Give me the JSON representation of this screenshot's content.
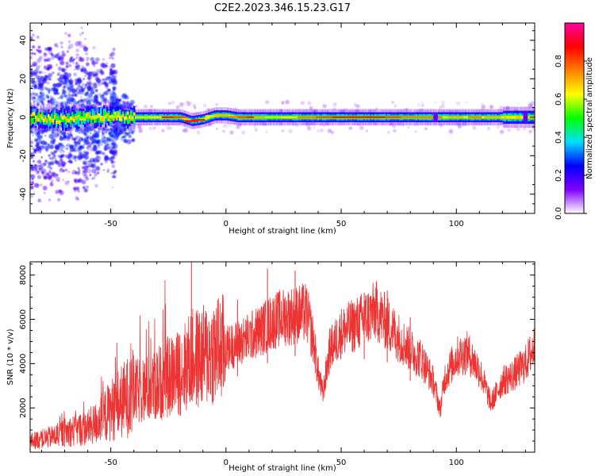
{
  "figure": {
    "title": "C2E2.2023.346.15.23.G17"
  },
  "chart_data": [
    {
      "type": "heatmap",
      "xlabel": "Height of straight line (km)",
      "ylabel": "Frequency (Hz)",
      "xlim": [
        -85,
        134
      ],
      "ylim": [
        -50,
        49
      ],
      "xticks": [
        -50,
        0,
        50,
        100
      ],
      "xtick_labels": [
        "-50",
        "0",
        "50",
        "100"
      ],
      "yticks": [
        -40,
        -20,
        0,
        20,
        40
      ],
      "ytick_labels": [
        "-40",
        "-20",
        "0",
        "20",
        "40"
      ],
      "colorbar": {
        "label": "Normalized spectral amplitude",
        "range": [
          0,
          1
        ],
        "ticks": [
          0,
          0.2,
          0.4,
          0.6,
          0.8
        ],
        "tick_labels": [
          "0.0",
          "0.2",
          "0.4",
          "0.6",
          "0.8"
        ],
        "colors": [
          "#ffffff",
          "#8000ff",
          "#0000ff",
          "#00e0ff",
          "#00ff00",
          "#ffff00",
          "#ff8000",
          "#ff0000",
          "#ff00a0"
        ]
      },
      "ridge": {
        "x": [
          -85,
          -70,
          -60,
          -50,
          -40,
          -30,
          -20,
          -15,
          -10,
          -5,
          0,
          5,
          10,
          20,
          40,
          60,
          80,
          91,
          100,
          120,
          134
        ],
        "freq": [
          0,
          -1,
          0,
          0.5,
          0,
          0,
          0,
          -2,
          -1,
          1,
          1,
          0,
          0,
          0,
          0,
          0,
          0,
          0,
          0,
          0,
          0
        ]
      },
      "grid": false
    },
    {
      "type": "line",
      "xlabel": "Height of straight line (km)",
      "ylabel": "SNR (10 * v/v)",
      "xlim": [
        -85,
        134
      ],
      "ylim": [
        0,
        8600
      ],
      "xticks": [
        -50,
        0,
        50,
        100
      ],
      "xtick_labels": [
        "-50",
        "0",
        "50",
        "100"
      ],
      "yticks": [
        2000,
        4000,
        6000,
        8000
      ],
      "ytick_labels": [
        "2000",
        "4000",
        "6000",
        "8000"
      ],
      "series": [
        {
          "color": "#ee3333",
          "x": [
            -85,
            -80,
            -75,
            -70,
            -65,
            -60,
            -55,
            -50,
            -45,
            -40,
            -35,
            -30,
            -25,
            -20,
            -15,
            -10,
            -5,
            0,
            5,
            10,
            15,
            20,
            25,
            30,
            35,
            38,
            40,
            42,
            45,
            50,
            55,
            60,
            65,
            70,
            75,
            80,
            85,
            90,
            93,
            95,
            100,
            105,
            110,
            115,
            120,
            125,
            130,
            134
          ],
          "y": [
            500,
            600,
            700,
            900,
            1000,
            1100,
            1400,
            1900,
            2300,
            2700,
            2800,
            3000,
            3400,
            3600,
            4200,
            4300,
            4600,
            4700,
            4900,
            5200,
            5500,
            5900,
            6100,
            6200,
            6300,
            5000,
            3600,
            2600,
            4600,
            5400,
            5700,
            6000,
            6400,
            5800,
            5200,
            4600,
            4200,
            3200,
            1900,
            3400,
            4300,
            4500,
            3700,
            2200,
            3200,
            3500,
            4000,
            4800
          ],
          "spikes": [
            [
              -40,
              3900
            ],
            [
              -30,
              4500
            ],
            [
              -20,
              5300
            ],
            [
              -15,
              8600
            ],
            [
              -5,
              6200
            ],
            [
              5,
              6900
            ],
            [
              18,
              8300
            ],
            [
              30,
              8200
            ],
            [
              60,
              7200
            ],
            [
              70,
              7300
            ],
            [
              80,
              6100
            ]
          ]
        }
      ],
      "grid": false
    }
  ]
}
